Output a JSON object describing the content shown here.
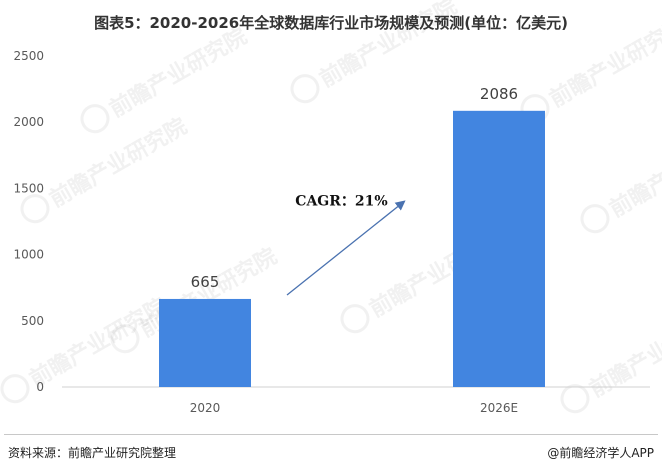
{
  "title": "图表5：2020-2026年全球数据库行业市场规模及预测(单位：亿美元)",
  "source": "资料来源：前瞻产业研究院整理",
  "credit": "@前瞻经济学人APP",
  "watermark": "前瞻产业研究院",
  "chart_data": {
    "type": "bar",
    "categories": [
      "2020",
      "2026E"
    ],
    "values": [
      665,
      2086
    ],
    "data_labels": [
      "665",
      "2086"
    ],
    "ylim": [
      0,
      2500
    ],
    "yticks": [
      "0",
      "500",
      "1000",
      "1500",
      "2000",
      "2500"
    ],
    "annotation": "CAGR：21%",
    "grid": false,
    "bar_color": "#4285e0",
    "arrow_color": "#4a72b0"
  }
}
